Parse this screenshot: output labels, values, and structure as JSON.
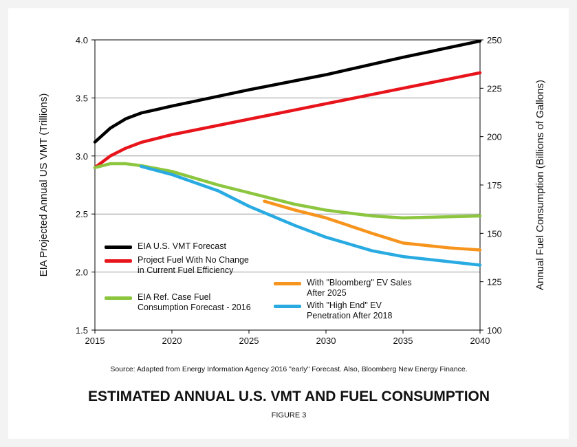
{
  "chart_data": {
    "type": "line",
    "title": "ESTIMATED ANNUAL U.S. VMT AND FUEL CONSUMPTION",
    "subtitle": "FIGURE 3",
    "source": "Source: Adapted from Energy Information Agency 2016 \"early\" Forecast. Also, Bloomberg New Energy Finance.",
    "y_label": "EIA Projected Annual US VMT (Trillions)",
    "y2_label": "Annual Fuel Consumption (Billions of Gallons)",
    "xlim": [
      2015,
      2040
    ],
    "xticks": [
      2015,
      2020,
      2025,
      2030,
      2035,
      2040
    ],
    "ylim": [
      1.5,
      4.0
    ],
    "yticks": [
      {
        "value": 1.5,
        "label": "1.5"
      },
      {
        "value": 2,
        "label": "2.0"
      },
      {
        "value": 2.5,
        "label": "2.5"
      },
      {
        "value": 3,
        "label": "3.0"
      },
      {
        "value": 3.5,
        "label": "3.5"
      },
      {
        "value": 4,
        "label": "4.0"
      }
    ],
    "y2lim": [
      100,
      250
    ],
    "y2ticks": [
      100,
      125,
      150,
      175,
      200,
      225,
      250
    ],
    "grid": true,
    "series": [
      {
        "name": "EIA U.S. VMT Forecast",
        "color": "#000000",
        "axis": "y",
        "x": [
          2015,
          2016,
          2017,
          2018,
          2019,
          2020,
          2025,
          2030,
          2035,
          2040
        ],
        "values": [
          3.12,
          3.24,
          3.32,
          3.37,
          3.4,
          3.43,
          3.57,
          3.7,
          3.85,
          3.99
        ]
      },
      {
        "name": "Project Fuel With No Change in Current Fuel Efficiency",
        "color": "#e8141c",
        "axis": "y2",
        "x": [
          2015,
          2016,
          2017,
          2018,
          2020,
          2025,
          2030,
          2035,
          2040
        ],
        "values": [
          184,
          190,
          194,
          197,
          201,
          209,
          217,
          225,
          233
        ]
      },
      {
        "name": "EIA Ref. Case Fuel Consumption Forecast - 2016",
        "color": "#8cc63f",
        "axis": "y2",
        "x": [
          2015,
          2016,
          2017,
          2018,
          2020,
          2023,
          2025,
          2028,
          2030,
          2033,
          2035,
          2040
        ],
        "values": [
          184,
          186,
          186,
          185,
          182,
          175,
          171,
          165,
          162,
          159,
          158,
          159
        ]
      },
      {
        "name": "With \"Bloomberg\" EV Sales After 2025",
        "color": "#f7941d",
        "axis": "y2",
        "x": [
          2026,
          2028,
          2030,
          2033,
          2035,
          2038,
          2040
        ],
        "values": [
          166.6,
          162,
          158,
          150,
          145,
          142.5,
          141.4
        ]
      },
      {
        "name": "With \"High End\" EV Penetration After 2018",
        "color": "#29abe2",
        "axis": "y2",
        "x": [
          2018,
          2020,
          2023,
          2025,
          2028,
          2030,
          2033,
          2035,
          2040
        ],
        "values": [
          184.6,
          180.4,
          172,
          164,
          154,
          148,
          141,
          138,
          133.6
        ]
      }
    ]
  }
}
